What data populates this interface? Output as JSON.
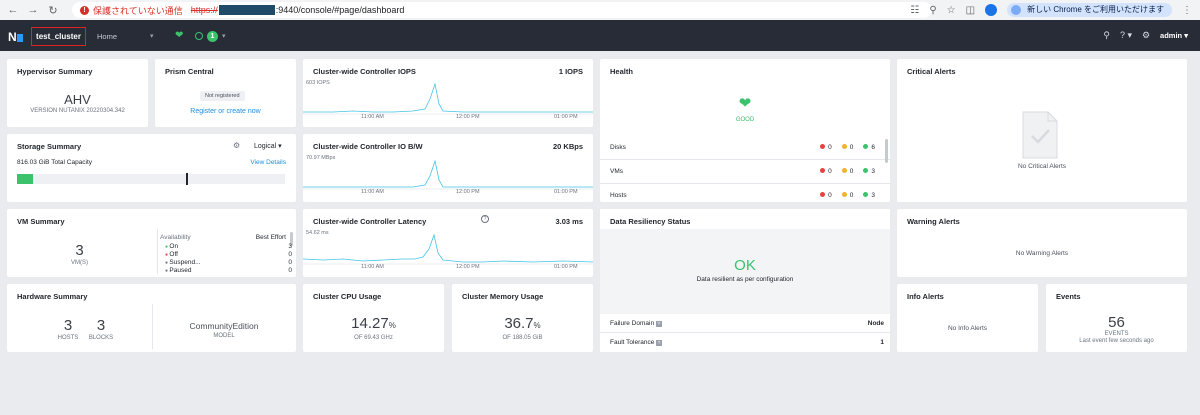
{
  "browser": {
    "warning": "保護されていない通信",
    "protocol": "https://",
    "url_rest": ":9440/console/#page/dashboard",
    "update_label": "新しい Chrome をご利用いただけます"
  },
  "appbar": {
    "cluster_name": "test_cluster",
    "home_label": "Home",
    "alert_count": "1",
    "user": "admin"
  },
  "hypervisor": {
    "title": "Hypervisor Summary",
    "name": "AHV",
    "version": "VERSION NUTANIX 20220304.342"
  },
  "prism": {
    "title": "Prism Central",
    "status": "Not registered",
    "link": "Register or create now"
  },
  "storage": {
    "title": "Storage Summary",
    "mode": "Logical",
    "capacity": "816.03 GiB",
    "capacity_label": "Total Capacity",
    "link": "View Details",
    "used_fraction": 0.06
  },
  "vm": {
    "title": "VM Summary",
    "count": "3",
    "count_label": "VM(S)",
    "col1": "Availability",
    "col2": "Best Effort",
    "rows": [
      {
        "label": "On",
        "value": "3",
        "color": "#3bc26d"
      },
      {
        "label": "Off",
        "value": "0",
        "color": "#e9413f"
      },
      {
        "label": "Suspend...",
        "value": "0",
        "color": "#6b7380"
      },
      {
        "label": "Paused",
        "value": "0",
        "color": "#6b7380"
      }
    ]
  },
  "hardware": {
    "title": "Hardware Summary",
    "hosts": "3",
    "hosts_label": "HOSTS",
    "blocks": "3",
    "blocks_label": "BLOCKS",
    "model": "CommunityEdition",
    "model_label": "MODEL"
  },
  "iops": {
    "title": "Cluster-wide Controller IOPS",
    "value": "1 IOPS",
    "peak": "603 IOPS",
    "t1": "11:00 AM",
    "t2": "12:00 PM",
    "t3": "01:00 PM"
  },
  "iobw": {
    "title": "Cluster-wide Controller IO B/W",
    "value": "20 KBps",
    "peak": "70.97 MBps",
    "t1": "11:00 AM",
    "t2": "12:00 PM",
    "t3": "01:00 PM"
  },
  "latency": {
    "title": "Cluster-wide Controller Latency",
    "value": "3.03 ms",
    "peak": "54.62 ms",
    "t1": "11:00 AM",
    "t2": "12:00 PM",
    "t3": "01:00 PM"
  },
  "cpu": {
    "title": "Cluster CPU Usage",
    "value": "14.27",
    "unit": "%",
    "sub": "OF 69.43 GHz"
  },
  "mem": {
    "title": "Cluster Memory Usage",
    "value": "36.7",
    "unit": "%",
    "sub": "OF 188.05 GiB"
  },
  "health": {
    "title": "Health",
    "status": "GOOD",
    "rows": [
      {
        "label": "Disks",
        "red": "0",
        "amber": "0",
        "green": "6"
      },
      {
        "label": "VMs",
        "red": "0",
        "amber": "0",
        "green": "3"
      },
      {
        "label": "Hosts",
        "red": "0",
        "amber": "0",
        "green": "3"
      }
    ]
  },
  "resiliency": {
    "title": "Data Resiliency Status",
    "status": "OK",
    "message": "Data resilient as per configuration",
    "fd_label": "Failure Domain",
    "fd_value": "Node",
    "ft_label": "Fault Tolerance",
    "ft_value": "1"
  },
  "critical": {
    "title": "Critical Alerts",
    "message": "No Critical Alerts"
  },
  "warning": {
    "title": "Warning Alerts",
    "message": "No Warning Alerts"
  },
  "info": {
    "title": "Info Alerts",
    "message": "No Info Alerts"
  },
  "events": {
    "title": "Events",
    "count": "56",
    "label": "EVENTS",
    "sub": "Last event few seconds ago"
  }
}
